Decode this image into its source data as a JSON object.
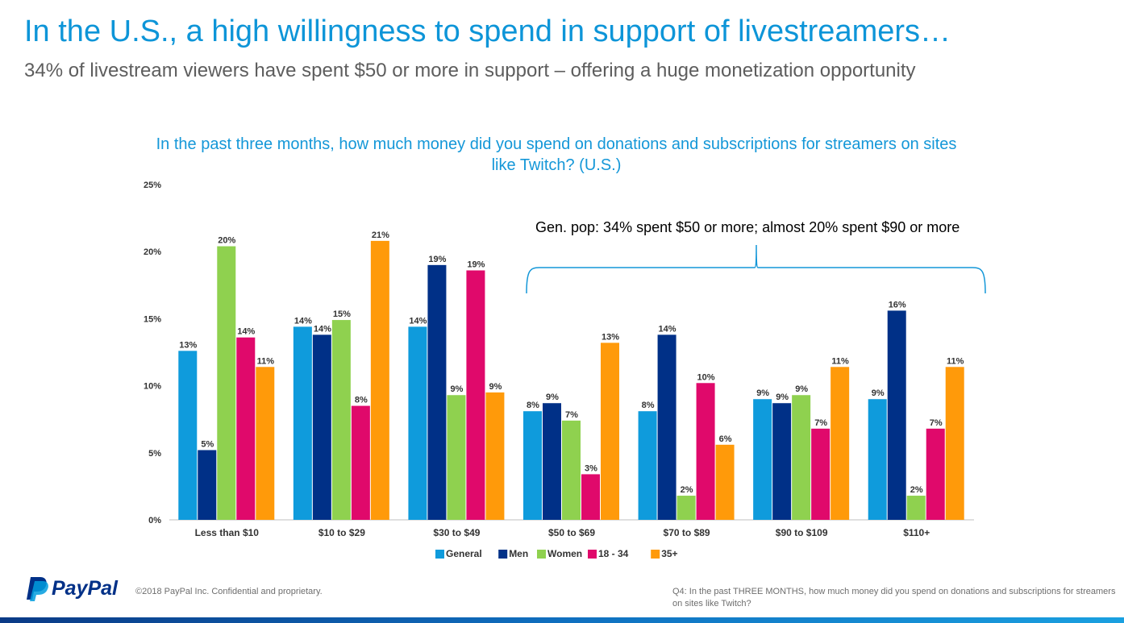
{
  "slide": {
    "title": "In the U.S., a high willingness to spend in support of livestreamers…",
    "subtitle": "34% of livestream viewers have spent $50 or more in support – offering a huge monetization opportunity",
    "callout": "Gen. pop: 34% spent $50 or more; almost 20% spent $90 or more"
  },
  "footer": {
    "brand": "PayPal",
    "copyright": "©2018 PayPal Inc. Confidential and proprietary.",
    "footnote": "Q4: In the past THREE MONTHS, how much money did you spend on donations and subscriptions for streamers on sites like Twitch?"
  },
  "colors": {
    "title": "#0d95d8",
    "general": "#0f9bdc",
    "men": "#003087",
    "women": "#8fd14f",
    "age_18_34": "#e0096b",
    "age_35_plus": "#ff9a0a"
  },
  "chart_data": {
    "type": "bar",
    "title": "In the past three months, how much money did you spend on donations and subscriptions for streamers on sites like Twitch? (U.S.)",
    "categories": [
      "Less than $10",
      "$10 to $29",
      "$30 to $49",
      "$50 to $69",
      "$70 to $89",
      "$90 to $109",
      "$110+"
    ],
    "series": [
      {
        "name": "General",
        "values": [
          12.6,
          14.4,
          14.4,
          8.1,
          8.1,
          9.0,
          9.0
        ],
        "labels": [
          "13%",
          "14%",
          "14%",
          "8%",
          "8%",
          "9%",
          "9%"
        ]
      },
      {
        "name": "Men",
        "values": [
          5.2,
          13.8,
          19.0,
          8.7,
          13.8,
          8.7,
          15.6
        ],
        "labels": [
          "5%",
          "14%",
          "19%",
          "9%",
          "14%",
          "9%",
          "16%"
        ]
      },
      {
        "name": "Women",
        "values": [
          20.4,
          14.9,
          9.3,
          7.4,
          1.8,
          9.3,
          1.8
        ],
        "labels": [
          "20%",
          "15%",
          "9%",
          "7%",
          "2%",
          "9%",
          "2%"
        ]
      },
      {
        "name": "18 - 34",
        "values": [
          13.6,
          8.5,
          18.6,
          3.4,
          10.2,
          6.8,
          6.8
        ],
        "labels": [
          "14%",
          "8%",
          "19%",
          "3%",
          "10%",
          "7%",
          "7%"
        ]
      },
      {
        "name": "35+",
        "values": [
          11.4,
          20.8,
          9.5,
          13.2,
          5.6,
          11.4,
          11.4
        ],
        "labels": [
          "11%",
          "21%",
          "9%",
          "13%",
          "6%",
          "11%",
          "11%"
        ]
      }
    ],
    "yticks": [
      "0%",
      "5%",
      "10%",
      "15%",
      "20%",
      "25%"
    ],
    "ylim": [
      0,
      25
    ],
    "xlabel": "",
    "ylabel": "",
    "legend": "bottom"
  }
}
